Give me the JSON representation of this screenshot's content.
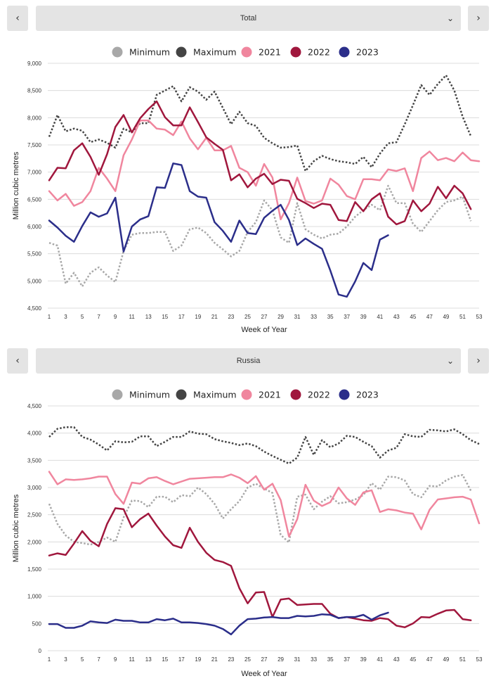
{
  "panels": [
    {
      "selector": {
        "value": "Total",
        "prev_icon": "chevron-left-icon",
        "next_icon": "chevron-right-icon",
        "dropdown_icon": "chevron-down-icon"
      },
      "chart_data": {
        "type": "line",
        "xlabel": "Week of Year",
        "ylabel": "Million cubic metres",
        "ylim": [
          4500,
          9000
        ],
        "xlim": [
          1,
          53
        ],
        "y_ticks": [
          "9,000",
          "8,500",
          "8,000",
          "7,500",
          "7,000",
          "6,500",
          "6,000",
          "5,500",
          "5,000",
          "4,500"
        ],
        "y_tick_values": [
          9000,
          8500,
          8000,
          7500,
          7000,
          6500,
          6000,
          5500,
          5000,
          4500
        ],
        "x_ticks": [
          "1",
          "3",
          "5",
          "7",
          "9",
          "11",
          "13",
          "15",
          "17",
          "19",
          "21",
          "23",
          "25",
          "27",
          "29",
          "31",
          "33",
          "35",
          "37",
          "39",
          "41",
          "43",
          "45",
          "47",
          "49",
          "51",
          "53"
        ],
        "grid": "horizontal",
        "legend_position": "top",
        "series": [
          {
            "name": "Minimum",
            "color": "#a8a8a8",
            "style": "dotted",
            "values": [
              5700,
              5650,
              4950,
              5150,
              4900,
              5150,
              5250,
              5100,
              4980,
              5550,
              5850,
              5880,
              5880,
              5900,
              5900,
              5550,
              5650,
              5950,
              5980,
              5880,
              5700,
              5580,
              5450,
              5550,
              5900,
              6080,
              6480,
              6300,
              5800,
              5700,
              6430,
              5950,
              5850,
              5780,
              5850,
              5870,
              6000,
              6180,
              6300,
              6400,
              6300,
              6750,
              6430,
              6430,
              6050,
              5900,
              6100,
              6300,
              6450,
              6480,
              6550,
              6100
            ]
          },
          {
            "name": "Maximum",
            "color": "#444444",
            "style": "dotted",
            "values": [
              7650,
              8050,
              7750,
              7800,
              7760,
              7550,
              7600,
              7540,
              7450,
              7800,
              7730,
              7900,
              7900,
              8420,
              8500,
              8580,
              8300,
              8560,
              8480,
              8330,
              8480,
              8180,
              7880,
              8110,
              7900,
              7850,
              7630,
              7530,
              7450,
              7460,
              7490,
              7020,
              7200,
              7300,
              7240,
              7200,
              7180,
              7150,
              7280,
              7090,
              7340,
              7530,
              7550,
              7880,
              8230,
              8600,
              8420,
              8620,
              8780,
              8500,
              8020,
              7660
            ]
          },
          {
            "name": "2021",
            "color": "#f0869e",
            "style": "solid",
            "values": [
              6650,
              6480,
              6600,
              6380,
              6450,
              6650,
              7080,
              6880,
              6650,
              7310,
              7600,
              7950,
              7950,
              7800,
              7780,
              7680,
              7930,
              7620,
              7420,
              7630,
              7400,
              7400,
              7480,
              7080,
              7000,
              6750,
              7150,
              6900,
              6130,
              6430,
              6900,
              6470,
              6420,
              6480,
              6880,
              6770,
              6560,
              6500,
              6870,
              6870,
              6850,
              7050,
              7020,
              7070,
              6650,
              7260,
              7380,
              7220,
              7260,
              7200,
              7360,
              7220,
              7200
            ]
          },
          {
            "name": "2022",
            "color": "#a0173d",
            "style": "solid",
            "values": [
              6850,
              7080,
              7070,
              7400,
              7530,
              7280,
              6950,
              7330,
              7830,
              8050,
              7730,
              7990,
              8160,
              8300,
              8010,
              7860,
              7860,
              8190,
              7920,
              7640,
              7520,
              7410,
              6850,
              6960,
              6720,
              6880,
              6970,
              6780,
              6860,
              6840,
              6510,
              6430,
              6340,
              6420,
              6400,
              6120,
              6100,
              6450,
              6280,
              6500,
              6610,
              6180,
              6040,
              6100,
              6480,
              6280,
              6420,
              6730,
              6520,
              6750,
              6610,
              6320
            ]
          },
          {
            "name": "2023",
            "color": "#2b2e8a",
            "style": "solid",
            "values": [
              6110,
              5980,
              5830,
              5720,
              6010,
              6260,
              6180,
              6240,
              6530,
              5540,
              6000,
              6130,
              6190,
              6720,
              6710,
              7160,
              7130,
              6650,
              6550,
              6530,
              6080,
              5920,
              5720,
              6110,
              5880,
              5860,
              6160,
              6290,
              6400,
              6120,
              5660,
              5780,
              5680,
              5590,
              5190,
              4750,
              4710,
              4990,
              5330,
              5200,
              5760,
              5840
            ]
          }
        ]
      }
    },
    {
      "selector": {
        "value": "Russia",
        "prev_icon": "chevron-left-icon",
        "next_icon": "chevron-right-icon",
        "dropdown_icon": "chevron-down-icon"
      },
      "chart_data": {
        "type": "line",
        "xlabel": "Week of Year",
        "ylabel": "Million cubic metres",
        "ylim": [
          0,
          4500
        ],
        "xlim": [
          1,
          53
        ],
        "y_ticks": [
          "4,500",
          "4,000",
          "3,500",
          "3,000",
          "2,500",
          "2,000",
          "1,500",
          "1,000",
          "500",
          "0"
        ],
        "y_tick_values": [
          4500,
          4000,
          3500,
          3000,
          2500,
          2000,
          1500,
          1000,
          500,
          0
        ],
        "x_ticks": [
          "1",
          "3",
          "5",
          "7",
          "9",
          "11",
          "13",
          "15",
          "17",
          "19",
          "21",
          "23",
          "25",
          "27",
          "29",
          "31",
          "33",
          "35",
          "37",
          "39",
          "41",
          "43",
          "45",
          "47",
          "49",
          "51",
          "53"
        ],
        "grid": "horizontal",
        "legend_position": "top",
        "series": [
          {
            "name": "Minimum",
            "color": "#a8a8a8",
            "style": "dotted",
            "values": [
              2700,
              2330,
              2120,
              2000,
              1980,
              1950,
              2000,
              2080,
              2000,
              2450,
              2760,
              2750,
              2640,
              2830,
              2830,
              2730,
              2860,
              2840,
              3000,
              2880,
              2700,
              2430,
              2600,
              2750,
              3000,
              3070,
              2980,
              2900,
              2130,
              1990,
              2830,
              2870,
              2600,
              2740,
              2840,
              2710,
              2730,
              2780,
              2860,
              3080,
              2960,
              3200,
              3190,
              3130,
              2880,
              2820,
              3030,
              3020,
              3130,
              3200,
              3230,
              2940
            ]
          },
          {
            "name": "Maximum",
            "color": "#444444",
            "style": "dotted",
            "values": [
              3930,
              4080,
              4110,
              4110,
              3930,
              3880,
              3790,
              3680,
              3850,
              3830,
              3840,
              3940,
              3940,
              3760,
              3840,
              3930,
              3930,
              4030,
              3990,
              3980,
              3890,
              3850,
              3820,
              3780,
              3810,
              3760,
              3660,
              3580,
              3510,
              3440,
              3550,
              3930,
              3600,
              3870,
              3740,
              3810,
              3950,
              3930,
              3840,
              3760,
              3550,
              3680,
              3730,
              3980,
              3940,
              3930,
              4060,
              4050,
              4030,
              4070,
              3980,
              3870,
              3800
            ]
          },
          {
            "name": "2021",
            "color": "#f0869e",
            "style": "solid",
            "values": [
              3290,
              3060,
              3150,
              3140,
              3150,
              3170,
              3200,
              3200,
              2880,
              2700,
              3090,
              3070,
              3170,
              3190,
              3120,
              3060,
              3110,
              3160,
              3170,
              3180,
              3190,
              3190,
              3240,
              3180,
              3080,
              3210,
              2960,
              3070,
              2770,
              2100,
              2420,
              3050,
              2760,
              2660,
              2730,
              3000,
              2800,
              2680,
              2910,
              2950,
              2550,
              2600,
              2580,
              2540,
              2520,
              2230,
              2590,
              2780,
              2800,
              2820,
              2830,
              2780,
              2340
            ]
          },
          {
            "name": "2022",
            "color": "#a0173d",
            "style": "solid",
            "values": [
              1750,
              1790,
              1760,
              1970,
              2200,
              2020,
              1920,
              2330,
              2620,
              2600,
              2270,
              2420,
              2520,
              2300,
              2100,
              1940,
              1890,
              2260,
              2000,
              1800,
              1670,
              1630,
              1560,
              1150,
              870,
              1070,
              1080,
              620,
              940,
              960,
              840,
              850,
              860,
              860,
              680,
              600,
              620,
              590,
              560,
              550,
              600,
              580,
              460,
              430,
              500,
              620,
              610,
              680,
              740,
              750,
              580,
              560
            ]
          },
          {
            "name": "2023",
            "color": "#2b2e8a",
            "style": "solid",
            "values": [
              490,
              490,
              420,
              420,
              460,
              540,
              520,
              510,
              570,
              550,
              550,
              520,
              520,
              580,
              560,
              590,
              520,
              520,
              510,
              490,
              460,
              400,
              300,
              460,
              580,
              590,
              610,
              620,
              600,
              600,
              640,
              630,
              640,
              670,
              660,
              600,
              620,
              620,
              660,
              570,
              650,
              700
            ]
          }
        ]
      }
    }
  ]
}
